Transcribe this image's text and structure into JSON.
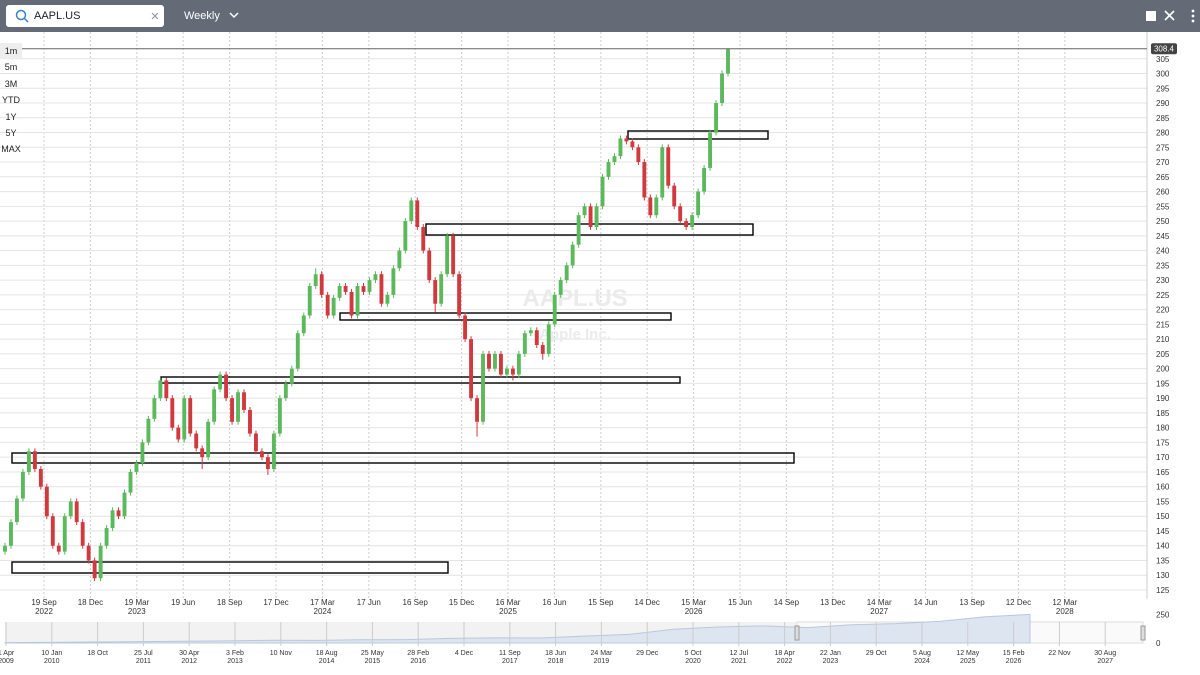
{
  "toolbar": {
    "symbol": "AAPL.US",
    "interval": "Weekly"
  },
  "range_buttons": [
    "1m",
    "5m",
    "3M",
    "YTD",
    "1Y",
    "5Y",
    "MAX"
  ],
  "chart_data": {
    "type": "candlestick",
    "watermark": "AAPL.US",
    "watermark_subtitle": "Apple Inc.",
    "up_color": "#5cb85c",
    "down_color": "#d0393e",
    "last_price": 308.4,
    "ylim": [
      122,
      310
    ],
    "yticks": [
      125,
      130,
      135,
      140,
      145,
      150,
      155,
      160,
      165,
      170,
      175,
      180,
      185,
      190,
      195,
      200,
      205,
      210,
      215,
      220,
      225,
      230,
      235,
      240,
      245,
      250,
      255,
      260,
      265,
      270,
      275,
      280,
      285,
      290,
      295,
      300,
      305
    ],
    "grid": true,
    "xlabels": [
      {
        "date": "19 Sep",
        "year": "2022"
      },
      {
        "date": "18 Dec"
      },
      {
        "date": "19 Mar",
        "year": "2023"
      },
      {
        "date": "19 Jun"
      },
      {
        "date": "18 Sep"
      },
      {
        "date": "17 Dec"
      },
      {
        "date": "17 Mar",
        "year": "2024"
      },
      {
        "date": "17 Jun"
      },
      {
        "date": "16 Sep"
      },
      {
        "date": "15 Dec"
      },
      {
        "date": "16 Mar",
        "year": "2025"
      },
      {
        "date": "16 Jun"
      },
      {
        "date": "15 Sep"
      },
      {
        "date": "14 Dec"
      },
      {
        "date": "15 Mar",
        "year": "2026"
      },
      {
        "date": "15 Jun"
      },
      {
        "date": "14 Sep"
      },
      {
        "date": "13 Dec"
      },
      {
        "date": "14 Mar",
        "year": "2027"
      },
      {
        "date": "14 Jun"
      },
      {
        "date": "13 Sep"
      },
      {
        "date": "12 Dec"
      },
      {
        "date": "12 Mar",
        "year": "2028"
      }
    ],
    "ohlc": [
      [
        138,
        141,
        137,
        140
      ],
      [
        140,
        149,
        139,
        148
      ],
      [
        148,
        157,
        147,
        156
      ],
      [
        156,
        166,
        155,
        165
      ],
      [
        165,
        173,
        164,
        172
      ],
      [
        172,
        173,
        165,
        166
      ],
      [
        166,
        167,
        159,
        160
      ],
      [
        160,
        161,
        149,
        150
      ],
      [
        150,
        151,
        139,
        140
      ],
      [
        140,
        141,
        137,
        138
      ],
      [
        138,
        151,
        137,
        150
      ],
      [
        150,
        156,
        149,
        155
      ],
      [
        155,
        156,
        147,
        148
      ],
      [
        148,
        149,
        139,
        140
      ],
      [
        140,
        141,
        134,
        135
      ],
      [
        135,
        136,
        128,
        129
      ],
      [
        129,
        141,
        128,
        140
      ],
      [
        140,
        147,
        139,
        146
      ],
      [
        146,
        153,
        145,
        152
      ],
      [
        152,
        153,
        149,
        150
      ],
      [
        150,
        159,
        149,
        158
      ],
      [
        158,
        166,
        157,
        165
      ],
      [
        165,
        169,
        164,
        168
      ],
      [
        168,
        176,
        167,
        175
      ],
      [
        175,
        184,
        174,
        183
      ],
      [
        183,
        191,
        182,
        190
      ],
      [
        190,
        197,
        189,
        196
      ],
      [
        196,
        197,
        189,
        190
      ],
      [
        190,
        191,
        179,
        180
      ],
      [
        180,
        181,
        175,
        176
      ],
      [
        176,
        191,
        175,
        190
      ],
      [
        190,
        191,
        177,
        178
      ],
      [
        178,
        179,
        172,
        173
      ],
      [
        173,
        174,
        166,
        170
      ],
      [
        170,
        183,
        169,
        182
      ],
      [
        182,
        194,
        181,
        193
      ],
      [
        193,
        199,
        192,
        198
      ],
      [
        198,
        199,
        189,
        190
      ],
      [
        190,
        191,
        181,
        182
      ],
      [
        182,
        193,
        181,
        192
      ],
      [
        192,
        193,
        185,
        186
      ],
      [
        186,
        187,
        177,
        178
      ],
      [
        178,
        179,
        171,
        172
      ],
      [
        172,
        173,
        169,
        170
      ],
      [
        170,
        171,
        164,
        166
      ],
      [
        166,
        179,
        165,
        178
      ],
      [
        178,
        191,
        177,
        190
      ],
      [
        190,
        196,
        189,
        195
      ],
      [
        195,
        201,
        194,
        200
      ],
      [
        200,
        213,
        199,
        212
      ],
      [
        212,
        219,
        211,
        218
      ],
      [
        218,
        229,
        217,
        228
      ],
      [
        228,
        234,
        227,
        232
      ],
      [
        232,
        233,
        224,
        225
      ],
      [
        225,
        226,
        217,
        218
      ],
      [
        218,
        225,
        217,
        224
      ],
      [
        224,
        229,
        223,
        228
      ],
      [
        228,
        229,
        225,
        226
      ],
      [
        226,
        227,
        217,
        218
      ],
      [
        218,
        229,
        217,
        228
      ],
      [
        228,
        229,
        225,
        226
      ],
      [
        226,
        231,
        225,
        230
      ],
      [
        230,
        233,
        229,
        232
      ],
      [
        232,
        233,
        221,
        222
      ],
      [
        222,
        226,
        221,
        225
      ],
      [
        225,
        235,
        224,
        234
      ],
      [
        234,
        241,
        233,
        240
      ],
      [
        240,
        251,
        239,
        250
      ],
      [
        250,
        258,
        249,
        257
      ],
      [
        257,
        258,
        247,
        248
      ],
      [
        248,
        249,
        239,
        240
      ],
      [
        240,
        241,
        229,
        230
      ],
      [
        230,
        231,
        219,
        222
      ],
      [
        222,
        233,
        221,
        232
      ],
      [
        232,
        246,
        231,
        245
      ],
      [
        245,
        246,
        231,
        232
      ],
      [
        232,
        233,
        217,
        218
      ],
      [
        218,
        219,
        209,
        210
      ],
      [
        210,
        211,
        189,
        190
      ],
      [
        190,
        191,
        177,
        182
      ],
      [
        182,
        206,
        181,
        205
      ],
      [
        205,
        206,
        199,
        200
      ],
      [
        200,
        206,
        199,
        205
      ],
      [
        205,
        206,
        197,
        198
      ],
      [
        198,
        201,
        197,
        200
      ],
      [
        200,
        201,
        196,
        198
      ],
      [
        198,
        206,
        197,
        205
      ],
      [
        205,
        213,
        204,
        212
      ],
      [
        212,
        214,
        211,
        213
      ],
      [
        213,
        214,
        207,
        208
      ],
      [
        208,
        209,
        203,
        205
      ],
      [
        205,
        216,
        204,
        215
      ],
      [
        215,
        226,
        214,
        225
      ],
      [
        225,
        231,
        224,
        230
      ],
      [
        230,
        236,
        229,
        235
      ],
      [
        235,
        243,
        234,
        242
      ],
      [
        242,
        253,
        241,
        252
      ],
      [
        252,
        256,
        251,
        255
      ],
      [
        255,
        256,
        247,
        248
      ],
      [
        248,
        256,
        247,
        255
      ],
      [
        255,
        266,
        254,
        265
      ],
      [
        265,
        271,
        264,
        270
      ],
      [
        270,
        273,
        269,
        272
      ],
      [
        272,
        279,
        271,
        278
      ],
      [
        278,
        279,
        276,
        277
      ],
      [
        277,
        278,
        274,
        275
      ],
      [
        275,
        276,
        269,
        270
      ],
      [
        270,
        271,
        257,
        258
      ],
      [
        258,
        259,
        251,
        252
      ],
      [
        252,
        259,
        251,
        258
      ],
      [
        258,
        276,
        257,
        275
      ],
      [
        275,
        276,
        261,
        262
      ],
      [
        262,
        263,
        254,
        255
      ],
      [
        255,
        256,
        249,
        250
      ],
      [
        250,
        251,
        247,
        248
      ],
      [
        248,
        253,
        247,
        252
      ],
      [
        252,
        261,
        251,
        260
      ],
      [
        260,
        269,
        259,
        268
      ],
      [
        268,
        281,
        267,
        280
      ],
      [
        280,
        291,
        279,
        290
      ],
      [
        290,
        301,
        289,
        300
      ],
      [
        300,
        308.4,
        299,
        308.4
      ]
    ]
  },
  "navigator": {
    "ylim": [
      0,
      350
    ],
    "yticks": [
      0,
      250
    ],
    "values": [
      3,
      6,
      9,
      12,
      15,
      19,
      24,
      23,
      28,
      30,
      40,
      45,
      44,
      60,
      75,
      120,
      140,
      150,
      135,
      160,
      170,
      190,
      230,
      250
    ],
    "xlabels": [
      {
        "date": "1 Apr",
        "year": "2009"
      },
      {
        "date": "10 Jan",
        "year": "2010"
      },
      {
        "date": "18 Oct"
      },
      {
        "date": "25 Jul",
        "year": "2011"
      },
      {
        "date": "30 Apr",
        "year": "2012"
      },
      {
        "date": "3 Feb",
        "year": "2013"
      },
      {
        "date": "10 Nov"
      },
      {
        "date": "18 Aug",
        "year": "2014"
      },
      {
        "date": "25 May",
        "year": "2015"
      },
      {
        "date": "28 Feb",
        "year": "2016"
      },
      {
        "date": "4 Dec"
      },
      {
        "date": "11 Sep",
        "year": "2017"
      },
      {
        "date": "18 Jun",
        "year": "2018"
      },
      {
        "date": "24 Mar",
        "year": "2019"
      },
      {
        "date": "29 Dec"
      },
      {
        "date": "5 Oct",
        "year": "2020"
      },
      {
        "date": "12 Jul",
        "year": "2021"
      },
      {
        "date": "18 Apr",
        "year": "2022"
      },
      {
        "date": "22 Jan",
        "year": "2023"
      },
      {
        "date": "29 Oct"
      },
      {
        "date": "5 Aug",
        "year": "2024"
      },
      {
        "date": "12 May",
        "year": "2025"
      },
      {
        "date": "15 Feb",
        "year": "2026"
      },
      {
        "date": "22 Nov"
      },
      {
        "date": "30 Aug",
        "year": "2027"
      }
    ]
  }
}
